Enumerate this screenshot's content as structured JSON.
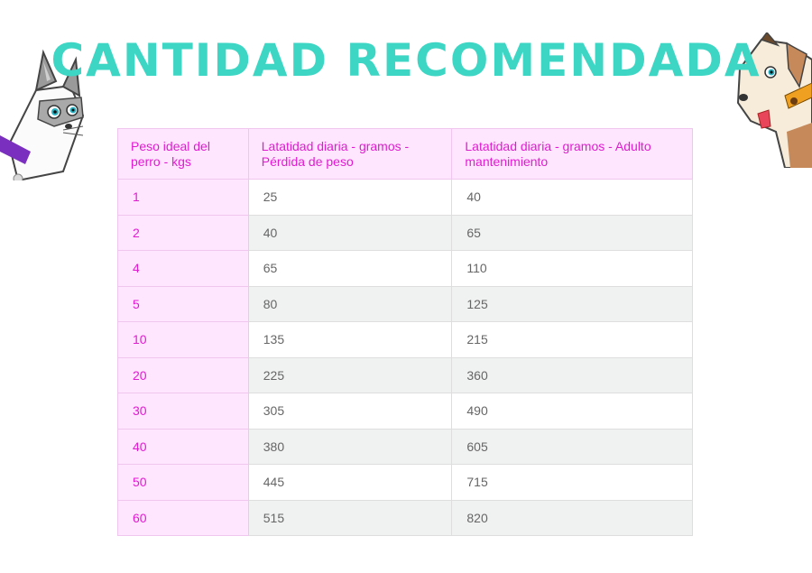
{
  "title": "CANTIDAD RECOMENDADA",
  "table": {
    "headers": [
      "Peso ideal del perro - kgs",
      "Latatidad diaria - gramos - Pérdida de peso",
      "Latatidad diaria - gramos - Adulto mantenimiento"
    ],
    "rows": [
      [
        "1",
        "25",
        "40"
      ],
      [
        "2",
        "40",
        "65"
      ],
      [
        "4",
        "65",
        "110"
      ],
      [
        "5",
        "80",
        "125"
      ],
      [
        "10",
        "135",
        "215"
      ],
      [
        "20",
        "225",
        "360"
      ],
      [
        "30",
        "305",
        "490"
      ],
      [
        "40",
        "380",
        "605"
      ],
      [
        "50",
        "445",
        "715"
      ],
      [
        "60",
        "515",
        "820"
      ]
    ]
  },
  "colors": {
    "title": "#3dd6c4",
    "header_text": "#e01cd0",
    "header_bg": "#ffe6ff",
    "row_alt_bg": "#f0f1f1"
  },
  "illustrations": [
    "cat-illustration",
    "dog-illustration"
  ]
}
